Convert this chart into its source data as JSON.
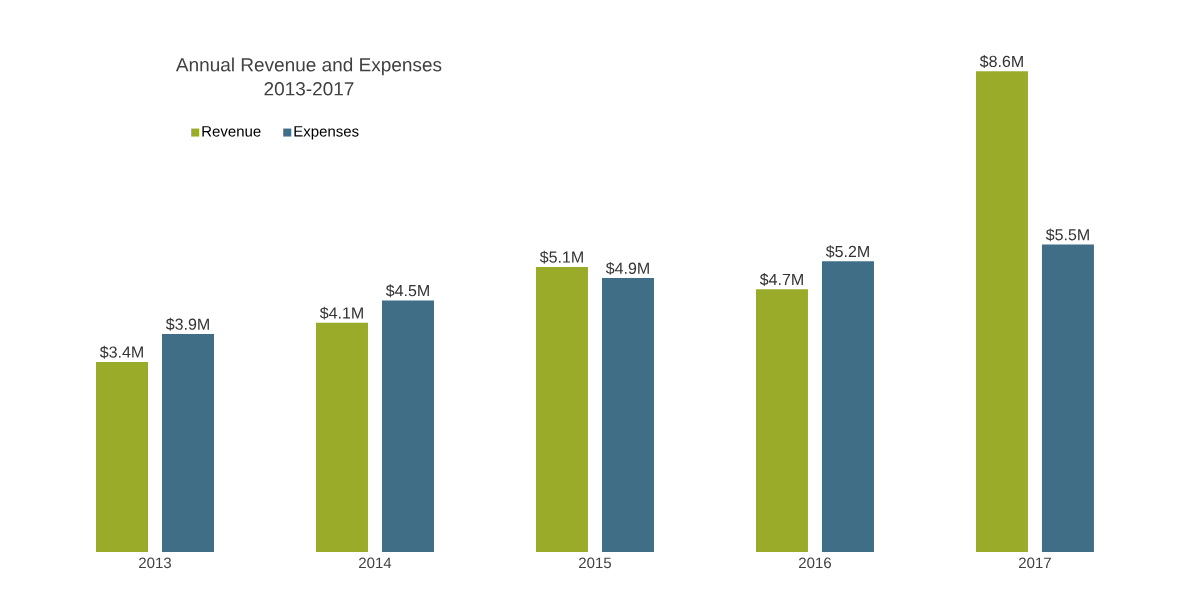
{
  "chart_data": {
    "type": "bar",
    "title": "Annual Revenue and Expenses",
    "subtitle": "2013-2017",
    "categories": [
      "2013",
      "2014",
      "2015",
      "2016",
      "2017"
    ],
    "series": [
      {
        "name": "Revenue",
        "color": "#9aab2a",
        "values": [
          3.4,
          4.1,
          5.1,
          4.7,
          8.6
        ],
        "value_labels": [
          "$3.4M",
          "$4.1M",
          "$5.1M",
          "$4.7M",
          "$8.6M"
        ]
      },
      {
        "name": "Expenses",
        "color": "#3f6e86",
        "values": [
          3.9,
          4.5,
          4.9,
          5.2,
          5.5
        ],
        "value_labels": [
          "$3.9M",
          "$4.5M",
          "$4.9M",
          "$5.2M",
          "$5.5M"
        ]
      }
    ],
    "legend": "top left"
  }
}
